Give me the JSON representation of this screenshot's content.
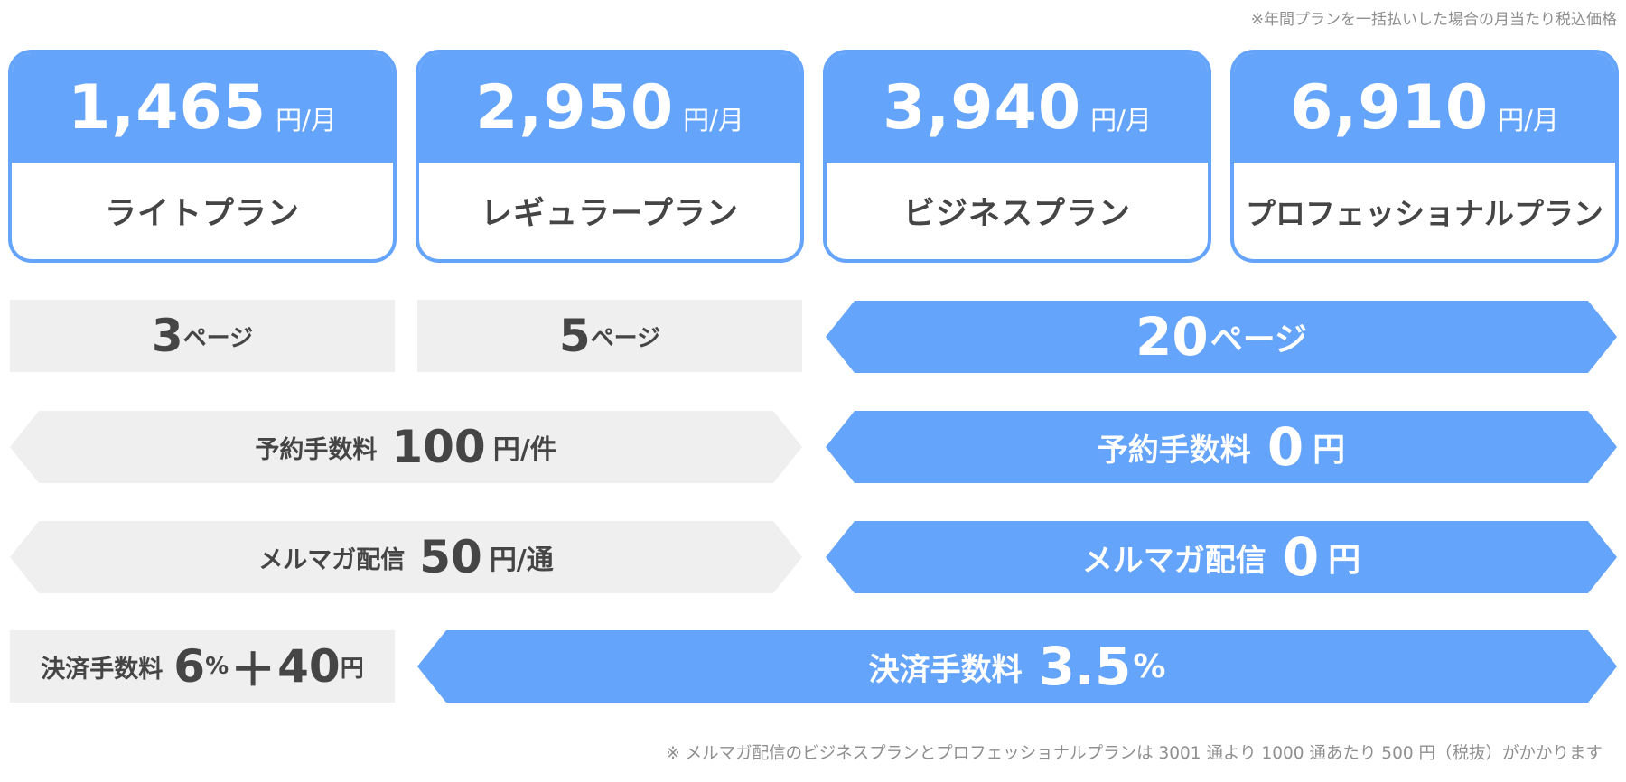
{
  "notes": {
    "top": "※年間プランを一括払いした場合の月当たり税込価格",
    "bottom": "※ メルマガ配信のビジネスプランとプロフェッショナルプランは 3001 通より 1000 通あたり 500 円（税抜）がかかります"
  },
  "plans": [
    {
      "price": "1,465",
      "unit": "円/月",
      "name": "ライトプラン"
    },
    {
      "price": "2,950",
      "unit": "円/月",
      "name": "レギュラープラン"
    },
    {
      "price": "3,940",
      "unit": "円/月",
      "name": "ビジネスプラン"
    },
    {
      "price": "6,910",
      "unit": "円/月",
      "name": "プロフェッショナルプラン"
    }
  ],
  "pages": {
    "light": {
      "value": "3",
      "unit": "ページ"
    },
    "regular": {
      "value": "5",
      "unit": "ページ"
    },
    "business_pro": {
      "value": "20",
      "unit": "ページ"
    }
  },
  "reservation_fee": {
    "paid": {
      "label": "予約手数料",
      "value": "100",
      "unit": "円/件"
    },
    "free": {
      "label": "予約手数料",
      "value": "0",
      "unit": "円"
    }
  },
  "newsletter": {
    "paid": {
      "label": "メルマガ配信",
      "value": "50",
      "unit": "円/通"
    },
    "free": {
      "label": "メルマガ配信",
      "value": "0",
      "unit": "円"
    }
  },
  "payment_fee": {
    "light": {
      "label": "決済手数料",
      "value": "6",
      "percent": "%",
      "plus": "＋",
      "fixed": "40",
      "unit": "円"
    },
    "others": {
      "label": "決済手数料",
      "value": "3.5",
      "percent": "%"
    }
  },
  "colors": {
    "accent": "#65a4fb",
    "grey_bar": "#efefef",
    "text": "#454545",
    "note": "#8f8f8f"
  }
}
